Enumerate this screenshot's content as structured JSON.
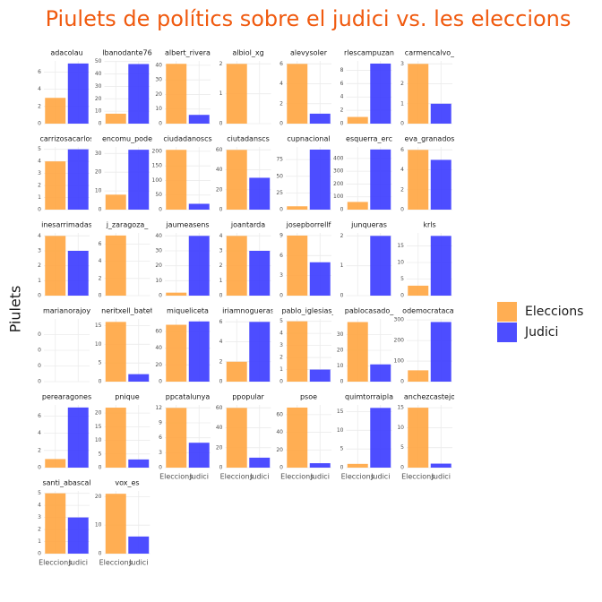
{
  "chart_data": {
    "type": "bar",
    "title": "Piulets de polítics sobre el judici vs. les eleccions",
    "ylabel": "Piulets",
    "categories": [
      "Eleccions",
      "Judici"
    ],
    "colors": [
      "#ffa540",
      "#3a3aff"
    ],
    "legend_position": "right",
    "grid": true,
    "facets": [
      {
        "name": "adacolau",
        "values": [
          3,
          7
        ],
        "ylim": [
          0,
          7.3
        ],
        "yticks": [
          0,
          2,
          4,
          6
        ]
      },
      {
        "name": "lbanodante76",
        "values": [
          8,
          48
        ],
        "ylim": [
          0,
          50.5
        ],
        "yticks": [
          0,
          10,
          20,
          30,
          40,
          50
        ]
      },
      {
        "name": "albert_rivera",
        "values": [
          41,
          6
        ],
        "ylim": [
          0,
          43
        ],
        "yticks": [
          0,
          10,
          20,
          30,
          40
        ]
      },
      {
        "name": "albiol_xg",
        "values": [
          2,
          0
        ],
        "ylim": [
          0,
          2.1
        ],
        "yticks": [
          0,
          1,
          2
        ]
      },
      {
        "name": "alevysoler",
        "values": [
          6,
          1
        ],
        "ylim": [
          0,
          6.3
        ],
        "yticks": [
          0,
          2,
          4,
          6
        ]
      },
      {
        "name": "rlescampuzan",
        "values": [
          1,
          9
        ],
        "ylim": [
          0,
          9.4
        ],
        "yticks": [
          0,
          2,
          4,
          6,
          8
        ]
      },
      {
        "name": "carmencalvo_",
        "values": [
          3,
          1
        ],
        "ylim": [
          0,
          3.15
        ],
        "yticks": [
          0,
          1,
          2,
          3
        ]
      },
      {
        "name": "carrizosacarlos",
        "values": [
          4,
          5
        ],
        "ylim": [
          0,
          5.2
        ],
        "yticks": [
          0,
          1,
          2,
          3,
          4,
          5
        ]
      },
      {
        "name": "encomu_pode",
        "values": [
          8,
          32
        ],
        "ylim": [
          0,
          33.5
        ],
        "yticks": [
          0,
          10,
          20,
          30
        ]
      },
      {
        "name": "ciudadanoscs",
        "values": [
          205,
          20
        ],
        "ylim": [
          0,
          215
        ],
        "yticks": [
          0,
          50,
          100,
          150,
          200
        ]
      },
      {
        "name": "ciutadanscs",
        "values": [
          60,
          32
        ],
        "ylim": [
          0,
          63
        ],
        "yticks": [
          0,
          20,
          40,
          60
        ]
      },
      {
        "name": "cupnacional",
        "values": [
          5,
          90
        ],
        "ylim": [
          0,
          94
        ],
        "yticks": [
          0,
          25,
          50,
          75
        ]
      },
      {
        "name": "esquerra_erc",
        "values": [
          60,
          470
        ],
        "ylim": [
          0,
          490
        ],
        "yticks": [
          0,
          100,
          200,
          300,
          400
        ]
      },
      {
        "name": "eva_granados",
        "values": [
          6,
          5
        ],
        "ylim": [
          0,
          6.3
        ],
        "yticks": [
          0,
          2,
          4,
          6
        ]
      },
      {
        "name": "inesarrimadas",
        "values": [
          4,
          3
        ],
        "ylim": [
          0,
          4.2
        ],
        "yticks": [
          0,
          1,
          2,
          3,
          4
        ]
      },
      {
        "name": "j_zaragoza_",
        "values": [
          7,
          0
        ],
        "ylim": [
          0,
          7.3
        ],
        "yticks": [
          0,
          2,
          4,
          6
        ]
      },
      {
        "name": "jaumeasens",
        "values": [
          2,
          40
        ],
        "ylim": [
          0,
          42
        ],
        "yticks": [
          0,
          10,
          20,
          30,
          40
        ]
      },
      {
        "name": "joantarda",
        "values": [
          4,
          3
        ],
        "ylim": [
          0,
          4.2
        ],
        "yticks": [
          0,
          1,
          2,
          3,
          4
        ]
      },
      {
        "name": "josepborrellf",
        "values": [
          9,
          5
        ],
        "ylim": [
          0,
          9.4
        ],
        "yticks": [
          0,
          3,
          6,
          9
        ]
      },
      {
        "name": "junqueras",
        "values": [
          0,
          2
        ],
        "ylim": [
          0,
          2.1
        ],
        "yticks": [
          0,
          1,
          2
        ]
      },
      {
        "name": "krls",
        "values": [
          3,
          18
        ],
        "ylim": [
          0,
          18.9
        ],
        "yticks": [
          0,
          5,
          10,
          15
        ]
      },
      {
        "name": "marianorajoy",
        "values": [
          0,
          0
        ],
        "ylim": [
          0,
          0.1
        ],
        "yticks": [
          {
            "value": 0,
            "label": "0"
          },
          {
            "value": 0.025,
            "label": "0"
          },
          {
            "value": 0.05,
            "label": "0"
          },
          {
            "value": 0.075,
            "label": "0"
          }
        ]
      },
      {
        "name": "neritxell_batet",
        "values": [
          16,
          2
        ],
        "ylim": [
          0,
          16.8
        ],
        "yticks": [
          0,
          5,
          10,
          15
        ]
      },
      {
        "name": "miqueliceta",
        "values": [
          68,
          72
        ],
        "ylim": [
          0,
          75
        ],
        "yticks": [
          0,
          20,
          40,
          60
        ]
      },
      {
        "name": "iriamnogueras",
        "values": [
          2,
          6
        ],
        "ylim": [
          0,
          6.3
        ],
        "yticks": [
          0,
          2,
          4,
          6
        ]
      },
      {
        "name": "pablo_iglesias_",
        "values": [
          5,
          1
        ],
        "ylim": [
          0,
          5.2
        ],
        "yticks": [
          0,
          1,
          2,
          3,
          4,
          5
        ]
      },
      {
        "name": "pablocasado_",
        "values": [
          38,
          11
        ],
        "ylim": [
          0,
          40
        ],
        "yticks": [
          0,
          10,
          20,
          30
        ]
      },
      {
        "name": "odemocratacat",
        "values": [
          55,
          290
        ],
        "ylim": [
          0,
          305
        ],
        "yticks": [
          0,
          100,
          200,
          300
        ]
      },
      {
        "name": "perearagones",
        "values": [
          1,
          7
        ],
        "ylim": [
          0,
          7.3
        ],
        "yticks": [
          0,
          2,
          4,
          6
        ]
      },
      {
        "name": "pnique",
        "values": [
          22,
          3
        ],
        "ylim": [
          0,
          23
        ],
        "yticks": [
          0,
          5,
          10,
          15,
          20
        ]
      },
      {
        "name": "ppcatalunya",
        "values": [
          12,
          5
        ],
        "ylim": [
          0,
          12.6
        ],
        "yticks": [
          0,
          3,
          6,
          9,
          12
        ]
      },
      {
        "name": "ppopular",
        "values": [
          60,
          10
        ],
        "ylim": [
          0,
          63
        ],
        "yticks": [
          0,
          20,
          40,
          60
        ]
      },
      {
        "name": "psoe",
        "values": [
          68,
          5
        ],
        "ylim": [
          0,
          71
        ],
        "yticks": [
          0,
          20,
          40,
          60
        ]
      },
      {
        "name": "quimtorraipla",
        "values": [
          1,
          16
        ],
        "ylim": [
          0,
          16.8
        ],
        "yticks": [
          0,
          5,
          10,
          15
        ]
      },
      {
        "name": "anchezcastejo",
        "values": [
          15,
          1
        ],
        "ylim": [
          0,
          15.7
        ],
        "yticks": [
          0,
          5,
          10,
          15
        ]
      },
      {
        "name": "santi_abascal",
        "values": [
          5,
          3
        ],
        "ylim": [
          0,
          5.2
        ],
        "yticks": [
          0,
          1,
          2,
          3,
          4,
          5
        ]
      },
      {
        "name": "vox_es",
        "values": [
          21,
          6
        ],
        "ylim": [
          0,
          22
        ],
        "yticks": [
          0,
          10,
          20
        ]
      }
    ]
  }
}
